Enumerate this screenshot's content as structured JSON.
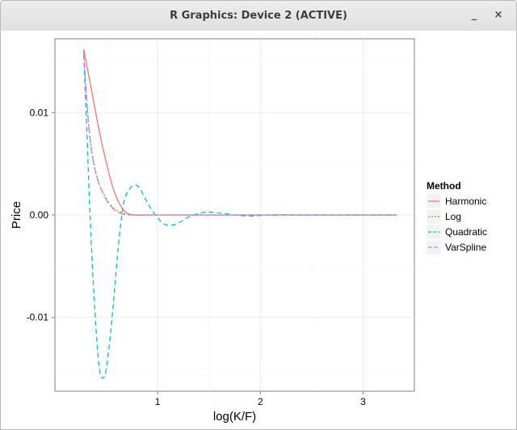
{
  "window": {
    "title": "R Graphics: Device 2 (ACTIVE)",
    "minimize_glyph": "_",
    "close_glyph": "×"
  },
  "chart_data": {
    "type": "line",
    "xlabel": "log(K/F)",
    "ylabel": "Price",
    "xlim": [
      0.0,
      3.5
    ],
    "ylim": [
      -0.0172,
      0.0172
    ],
    "x_ticks": [
      1,
      2,
      3
    ],
    "y_ticks": [
      -0.01,
      0.0,
      0.01
    ],
    "x_tick_labels": [
      "1",
      "2",
      "3"
    ],
    "y_tick_labels": [
      "-0.01",
      "0.00",
      "0.01"
    ],
    "grid": true,
    "legend": {
      "title": "Method",
      "placement": "right"
    },
    "series": [
      {
        "name": "Harmonic",
        "color": "#F8766D",
        "dash": "solid",
        "x": [
          0.28,
          0.35,
          0.42,
          0.5,
          0.58,
          0.66,
          0.72,
          0.8,
          0.9,
          1.2,
          2.0,
          3.33
        ],
        "y": [
          0.0162,
          0.0125,
          0.0088,
          0.0051,
          0.0022,
          0.0006,
          0.0001,
          0.0,
          0.0,
          0.0,
          0.0,
          0.0
        ]
      },
      {
        "name": "Log",
        "color": "#7CAE00",
        "dash": "dotted",
        "x": [
          0.28,
          0.32,
          0.36,
          0.42,
          0.5,
          0.58,
          0.66,
          0.75,
          0.9,
          1.5,
          3.33
        ],
        "y": [
          0.016,
          0.01,
          0.0062,
          0.0034,
          0.0016,
          0.0006,
          0.0002,
          0.0,
          0.0,
          0.0,
          0.0
        ]
      },
      {
        "name": "Quadratic",
        "color": "#00BFC4",
        "dash": "dashed",
        "x": [
          0.28,
          0.31,
          0.34,
          0.38,
          0.43,
          0.48,
          0.52,
          0.57,
          0.62,
          0.67,
          0.73,
          0.78,
          0.82,
          0.88,
          0.95,
          1.05,
          1.13,
          1.2,
          1.3,
          1.42,
          1.5,
          1.6,
          1.75,
          1.9,
          2.1,
          2.5,
          3.0,
          3.33
        ],
        "y": [
          0.0157,
          0.0085,
          0.0005,
          -0.0078,
          -0.0148,
          -0.0158,
          -0.0135,
          -0.0085,
          -0.0028,
          0.0012,
          0.0026,
          0.0029,
          0.0027,
          0.0016,
          0.0004,
          -0.0008,
          -0.001,
          -0.0008,
          -0.0002,
          0.0002,
          0.0003,
          0.0002,
          0.0,
          -0.0001,
          0.0,
          0.0,
          0.0,
          0.0
        ]
      },
      {
        "name": "VarSpline",
        "color": "#C77CFF",
        "dash": "longdash",
        "x": [
          0.28,
          0.32,
          0.36,
          0.42,
          0.5,
          0.58,
          0.66,
          0.75,
          0.9,
          1.5,
          3.33
        ],
        "y": [
          0.0159,
          0.0098,
          0.006,
          0.0033,
          0.0015,
          0.0005,
          0.0001,
          0.0,
          0.0,
          0.0,
          0.0
        ]
      }
    ]
  }
}
